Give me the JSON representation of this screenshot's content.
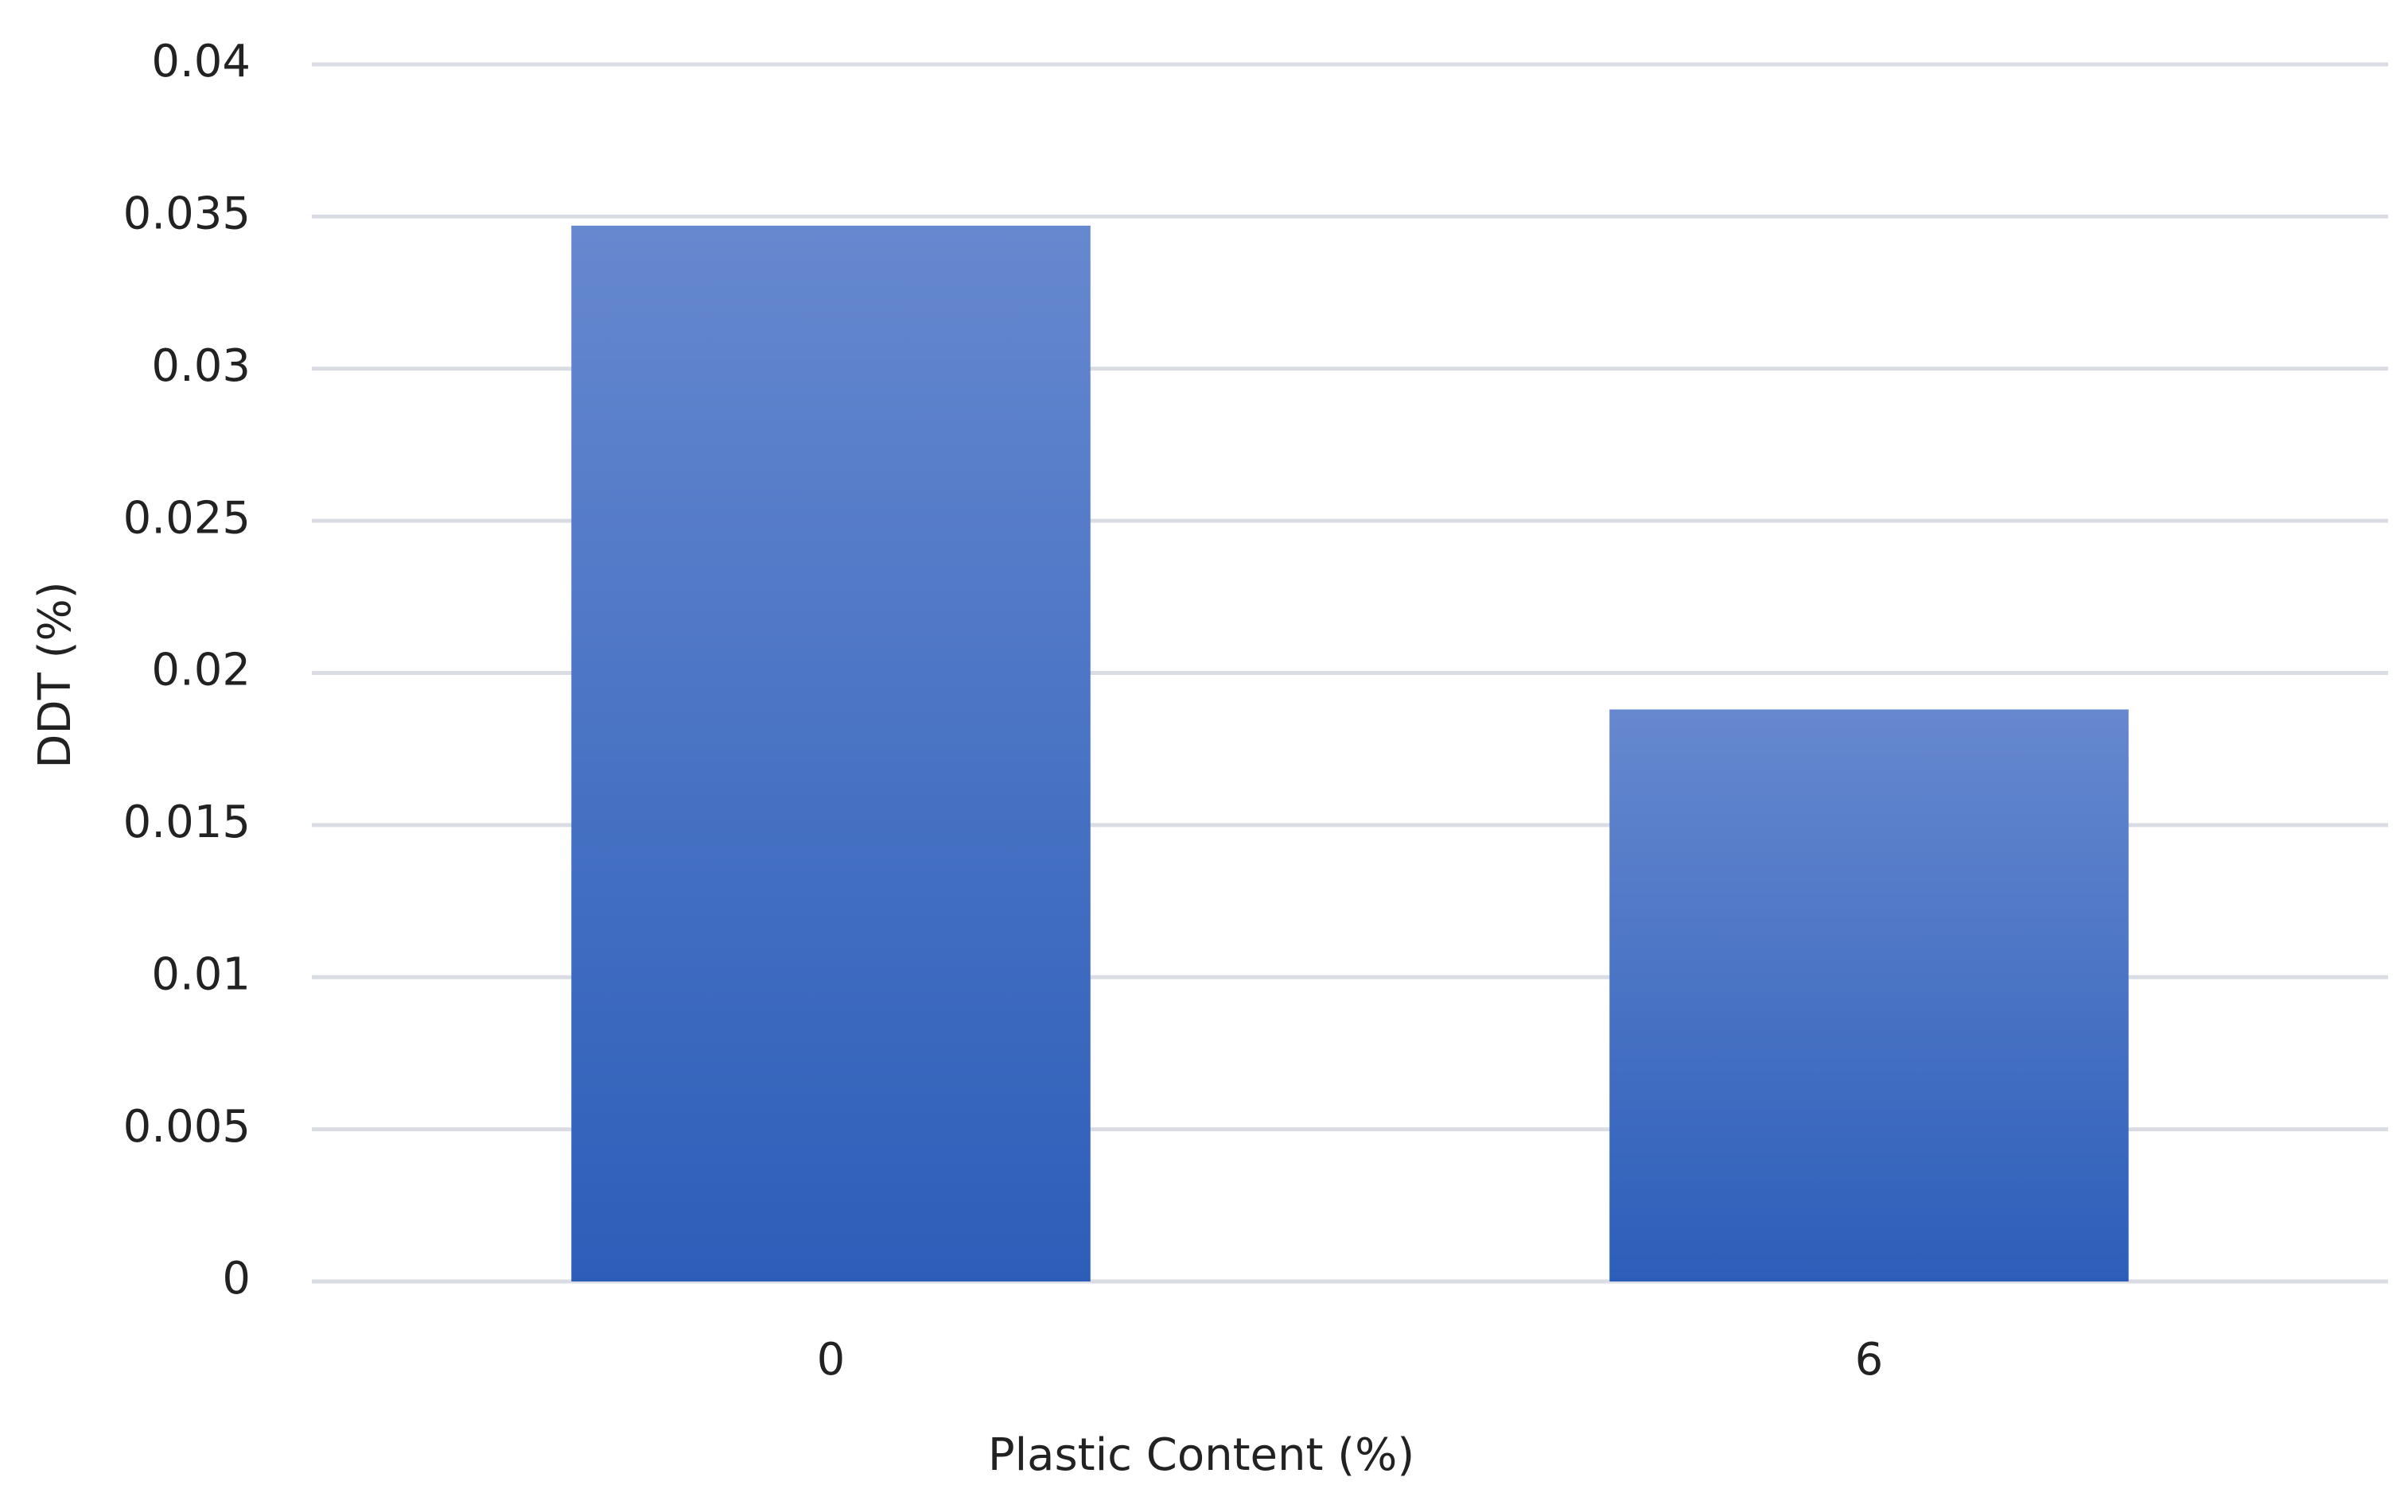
{
  "chart_data": {
    "type": "bar",
    "x_label": "Plastic Content (%)",
    "y_label": "DDT (%)",
    "categories": [
      "0",
      "6"
    ],
    "values": [
      0.0347,
      0.0188
    ],
    "color": "#3a6ac6",
    "ylim": [
      0,
      0.04
    ],
    "yticks": [
      0,
      0.005,
      0.01,
      0.015,
      0.02,
      0.025,
      0.03,
      0.035,
      0.04
    ],
    "grid": true
  }
}
